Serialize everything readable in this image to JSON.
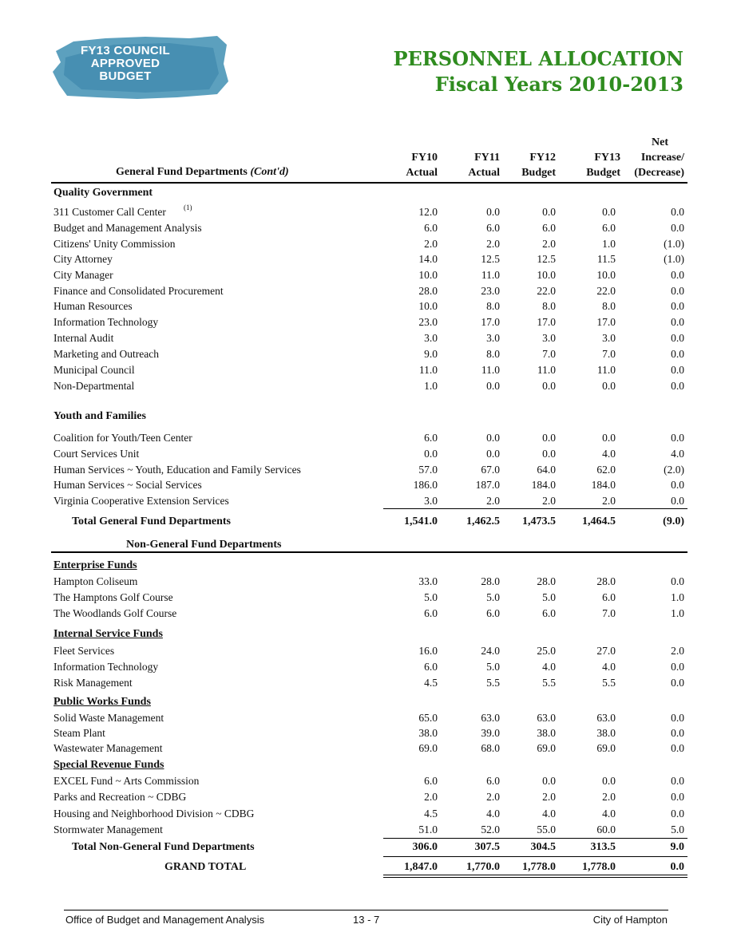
{
  "badge": {
    "line1": "FY13 COUNCIL",
    "line2": "APPROVED",
    "line3": "BUDGET"
  },
  "title": {
    "line1": "PERSONNEL ALLOCATION",
    "line2": "Fiscal Years 2010-2013"
  },
  "headers": {
    "dept": "General Fund Departments",
    "dept_italic": "(Cont'd)",
    "fy10": [
      "FY10",
      "Actual"
    ],
    "fy11": [
      "FY11",
      "Actual"
    ],
    "fy12": [
      "FY12",
      "Budget"
    ],
    "fy13": [
      "FY13",
      "Budget"
    ],
    "net": [
      "Net",
      "Increase/",
      "(Decrease)"
    ]
  },
  "rows": [
    {
      "type": "section",
      "label": "Quality Government"
    },
    {
      "label": "311 Customer Call Center",
      "sup": "(1)",
      "v": [
        "12.0",
        "0.0",
        "0.0",
        "0.0",
        "0.0"
      ]
    },
    {
      "label": "Budget and Management Analysis",
      "v": [
        "6.0",
        "6.0",
        "6.0",
        "6.0",
        "0.0"
      ]
    },
    {
      "label": "Citizens' Unity Commission",
      "v": [
        "2.0",
        "2.0",
        "2.0",
        "1.0",
        "(1.0)"
      ]
    },
    {
      "label": "City Attorney",
      "v": [
        "14.0",
        "12.5",
        "12.5",
        "11.5",
        "(1.0)"
      ]
    },
    {
      "label": "City Manager",
      "v": [
        "10.0",
        "11.0",
        "10.0",
        "10.0",
        "0.0"
      ]
    },
    {
      "label": "Finance and Consolidated Procurement",
      "v": [
        "28.0",
        "23.0",
        "22.0",
        "22.0",
        "0.0"
      ]
    },
    {
      "label": "Human Resources",
      "v": [
        "10.0",
        "8.0",
        "8.0",
        "8.0",
        "0.0"
      ]
    },
    {
      "label": "Information Technology",
      "v": [
        "23.0",
        "17.0",
        "17.0",
        "17.0",
        "0.0"
      ]
    },
    {
      "label": "Internal Audit",
      "v": [
        "3.0",
        "3.0",
        "3.0",
        "3.0",
        "0.0"
      ]
    },
    {
      "label": "Marketing and Outreach",
      "v": [
        "9.0",
        "8.0",
        "7.0",
        "7.0",
        "0.0"
      ]
    },
    {
      "label": "Municipal Council",
      "v": [
        "11.0",
        "11.0",
        "11.0",
        "11.0",
        "0.0"
      ]
    },
    {
      "label": "Non-Departmental",
      "v": [
        "1.0",
        "0.0",
        "0.0",
        "0.0",
        "0.0"
      ]
    },
    {
      "type": "section",
      "label": "Youth and Families"
    },
    {
      "label": "Coalition for Youth/Teen Center",
      "v": [
        "6.0",
        "0.0",
        "0.0",
        "0.0",
        "0.0"
      ]
    },
    {
      "label": "Court Services Unit",
      "v": [
        "0.0",
        "0.0",
        "0.0",
        "4.0",
        "4.0"
      ]
    },
    {
      "label": "Human Services ~ Youth, Education and Family Services",
      "v": [
        "57.0",
        "67.0",
        "64.0",
        "62.0",
        "(2.0)"
      ]
    },
    {
      "label": "Human Services ~ Social Services",
      "v": [
        "186.0",
        "187.0",
        "184.0",
        "184.0",
        "0.0"
      ]
    },
    {
      "label": "Virginia Cooperative Extension Services",
      "v": [
        "3.0",
        "2.0",
        "2.0",
        "2.0",
        "0.0"
      ]
    },
    {
      "type": "total",
      "label": "Total General Fund Departments",
      "v": [
        "1,541.0",
        "1,462.5",
        "1,473.5",
        "1,464.5",
        "(9.0)"
      ]
    },
    {
      "type": "subhead",
      "label": "Non-General Fund Departments"
    },
    {
      "type": "usection",
      "label": "Enterprise Funds"
    },
    {
      "label": "Hampton Coliseum",
      "v": [
        "33.0",
        "28.0",
        "28.0",
        "28.0",
        "0.0"
      ]
    },
    {
      "label": "The Hamptons Golf Course",
      "v": [
        "5.0",
        "5.0",
        "5.0",
        "6.0",
        "1.0"
      ]
    },
    {
      "label": "The Woodlands Golf Course",
      "v": [
        "6.0",
        "6.0",
        "6.0",
        "7.0",
        "1.0"
      ]
    },
    {
      "type": "usection",
      "label": "Internal Service Funds"
    },
    {
      "label": "Fleet Services",
      "v": [
        "16.0",
        "24.0",
        "25.0",
        "27.0",
        "2.0"
      ]
    },
    {
      "label": "Information Technology",
      "v": [
        "6.0",
        "5.0",
        "4.0",
        "4.0",
        "0.0"
      ]
    },
    {
      "label": "Risk Management",
      "v": [
        "4.5",
        "5.5",
        "5.5",
        "5.5",
        "0.0"
      ]
    },
    {
      "type": "usection",
      "label": "Public Works Funds"
    },
    {
      "label": "Solid Waste Management",
      "v": [
        "65.0",
        "63.0",
        "63.0",
        "63.0",
        "0.0"
      ]
    },
    {
      "label": "Steam Plant",
      "v": [
        "38.0",
        "39.0",
        "38.0",
        "38.0",
        "0.0"
      ]
    },
    {
      "label": "Wastewater Management",
      "v": [
        "69.0",
        "68.0",
        "69.0",
        "69.0",
        "0.0"
      ]
    },
    {
      "type": "usection",
      "label": "Special Revenue Funds"
    },
    {
      "label": "EXCEL Fund ~ Arts Commission",
      "v": [
        "6.0",
        "6.0",
        "0.0",
        "0.0",
        "0.0"
      ]
    },
    {
      "label": "Parks and Recreation ~ CDBG",
      "v": [
        "2.0",
        "2.0",
        "2.0",
        "2.0",
        "0.0"
      ]
    },
    {
      "label": "Housing and Neighborhood Division ~ CDBG",
      "v": [
        "4.5",
        "4.0",
        "4.0",
        "4.0",
        "0.0"
      ]
    },
    {
      "label": "Stormwater Management",
      "v": [
        "51.0",
        "52.0",
        "55.0",
        "60.0",
        "5.0"
      ]
    },
    {
      "type": "total",
      "label": "Total Non-General Fund Departments",
      "v": [
        "306.0",
        "307.5",
        "304.5",
        "313.5",
        "9.0"
      ]
    },
    {
      "type": "grand",
      "label": "GRAND TOTAL",
      "v": [
        "1,847.0",
        "1,770.0",
        "1,778.0",
        "1,778.0",
        "0.0"
      ]
    }
  ],
  "footer": {
    "left": "Office of Budget and Management Analysis",
    "center": "13 - 7",
    "right": "City of Hampton"
  },
  "colors": {
    "title": "#2f8c1f",
    "badge": "#3f8fb3"
  }
}
